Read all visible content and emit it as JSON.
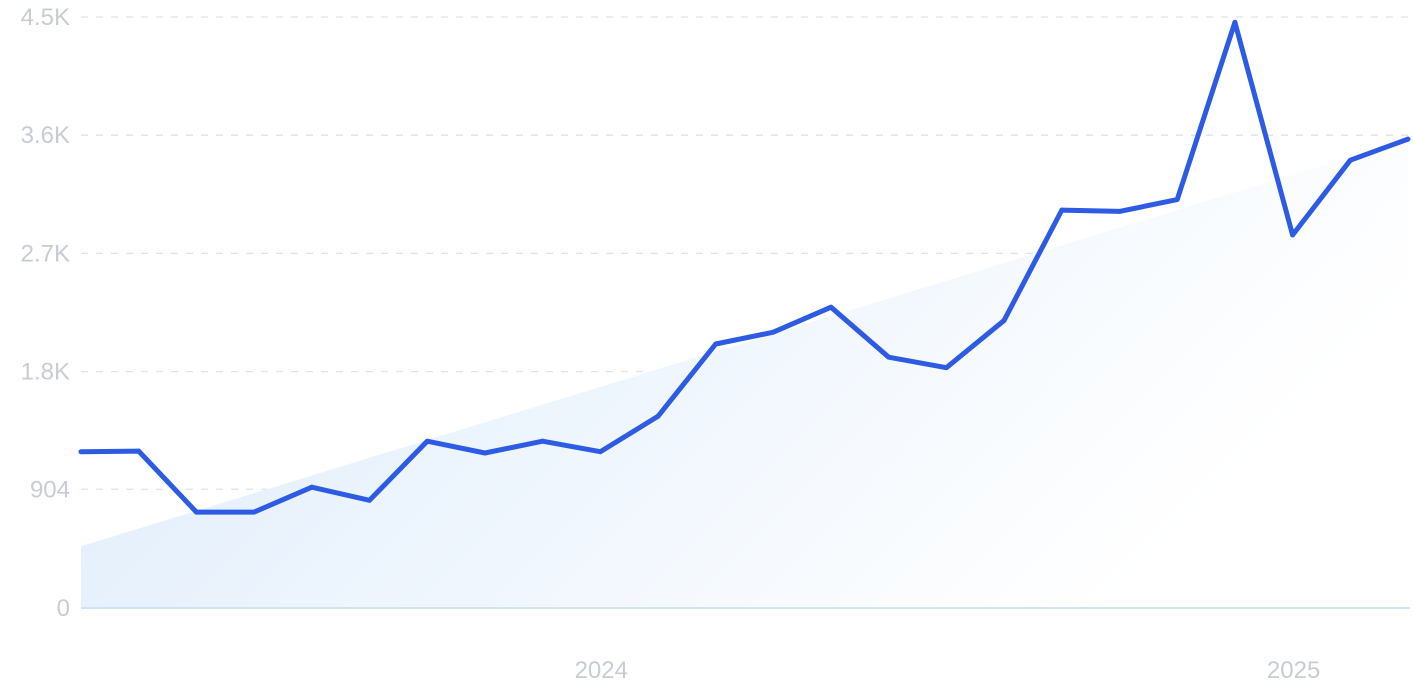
{
  "chart_data": {
    "type": "line",
    "title": "",
    "xlabel": "",
    "ylabel": "",
    "x_tick_labels": [
      {
        "label": "2024",
        "month_index": 9
      },
      {
        "label": "2025",
        "month_index": 21
      }
    ],
    "y_ticks": [
      0,
      904,
      1800,
      2700,
      3600,
      4500
    ],
    "y_tick_labels": [
      "0",
      "904",
      "1.8K",
      "2.7K",
      "3.6K",
      "4.5K"
    ],
    "ylim": [
      0,
      4500
    ],
    "grid": true,
    "legend": "none",
    "series": [
      {
        "values": [
          1190,
          1195,
          730,
          730,
          920,
          820,
          1270,
          1180,
          1270,
          1190,
          1460,
          2010,
          2100,
          2290,
          1910,
          1830,
          2190,
          3030,
          3020,
          3110,
          4460,
          2840,
          3410,
          3570
        ]
      }
    ],
    "trend": {
      "start": 470,
      "end": 3570
    },
    "colors": {
      "line": "#2d5be3",
      "area_top": "#dcebfb",
      "area_bottom": "#ffffff"
    }
  }
}
